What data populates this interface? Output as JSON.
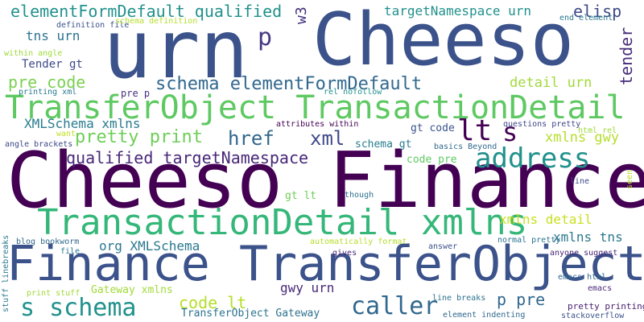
{
  "words": [
    {
      "text": "Cheeso Finance",
      "color": "#440154"
    },
    {
      "text": "urn",
      "color": "#3b528b"
    },
    {
      "text": "Cheeso",
      "color": "#3b528b"
    },
    {
      "text": "Finance TransferObject",
      "color": "#3b528b"
    },
    {
      "text": "TransferObject TransactionDetail",
      "color": "#5ec962"
    },
    {
      "text": "TransactionDetail xmlns",
      "color": "#35b779"
    },
    {
      "text": "address",
      "color": "#21918c"
    },
    {
      "text": "caller",
      "color": "#31688e"
    },
    {
      "text": "elementFormDefault qualified",
      "color": "#21918c"
    },
    {
      "text": "schema elementFormDefault",
      "color": "#31688e"
    },
    {
      "text": "s schema",
      "color": "#21918c"
    },
    {
      "text": "lt",
      "color": "#440154"
    },
    {
      "text": "s",
      "color": "#440154"
    },
    {
      "text": "p",
      "color": "#443983"
    },
    {
      "text": "qualified targetNamespace",
      "color": "#482878"
    },
    {
      "text": "pretty print",
      "color": "#6ece58"
    },
    {
      "text": "xml",
      "color": "#3e4989"
    },
    {
      "text": "href",
      "color": "#31688e"
    },
    {
      "text": "code lt",
      "color": "#b5de2b"
    },
    {
      "text": "p pre",
      "color": "#31688e"
    },
    {
      "text": "pre code",
      "color": "#7ad151"
    },
    {
      "text": "XMLSchema xmlns",
      "color": "#287c8e"
    },
    {
      "text": "org XMLSchema",
      "color": "#2a788e"
    },
    {
      "text": "targetNamespace urn",
      "color": "#21918c"
    },
    {
      "text": "elisp",
      "color": "#3e4989"
    },
    {
      "text": "tns urn",
      "color": "#2c728e"
    },
    {
      "text": "detail urn",
      "color": "#a0da39"
    },
    {
      "text": "xmlns gwy",
      "color": "#b5de2b"
    },
    {
      "text": "xmlns detail",
      "color": "#c8e020"
    },
    {
      "text": "xmlns tns",
      "color": "#2a788e"
    },
    {
      "text": "tender",
      "color": "#472d7b"
    },
    {
      "text": "w3 org",
      "color": "#46327e"
    },
    {
      "text": "gwy urn",
      "color": "#482878"
    },
    {
      "text": "Gateway xmlns",
      "color": "#a0da39"
    },
    {
      "text": "TransferObject Gateway",
      "color": "#2c728e"
    },
    {
      "text": "Tender gt",
      "color": "#3e4989"
    },
    {
      "text": "pre p",
      "color": "#46327e"
    },
    {
      "text": "printing xml",
      "color": "#2a788e"
    },
    {
      "text": "rel nofollow",
      "color": "#21918c"
    },
    {
      "text": "attributes within",
      "color": "#440154"
    },
    {
      "text": "gt code",
      "color": "#3b528b"
    },
    {
      "text": "schema gt",
      "color": "#287c8e"
    },
    {
      "text": "code pre",
      "color": "#5ec962"
    },
    {
      "text": "gt lt",
      "color": "#6ece58"
    },
    {
      "text": "basics Beyond",
      "color": "#31688e"
    },
    {
      "text": "questions pretty",
      "color": "#3e4989"
    },
    {
      "text": "html rel",
      "color": "#a0da39"
    },
    {
      "text": "though",
      "color": "#2c728e"
    },
    {
      "text": "line",
      "color": "#3e4989"
    },
    {
      "text": "seen",
      "color": "#b5de2b"
    },
    {
      "text": "angle brackets",
      "color": "#3e4989"
    },
    {
      "text": "want",
      "color": "#c2df23"
    },
    {
      "text": "within angle",
      "color": "#a0da39"
    },
    {
      "text": "definition file",
      "color": "#3b528b"
    },
    {
      "text": "schema definition",
      "color": "#b5de2b"
    },
    {
      "text": "end element",
      "color": "#2a788e"
    },
    {
      "text": "blog bookworm",
      "color": "#31688e"
    },
    {
      "text": "file",
      "color": "#2a788e"
    },
    {
      "text": "automatically format",
      "color": "#b5de2b"
    },
    {
      "text": "gives",
      "color": "#482878"
    },
    {
      "text": "answer",
      "color": "#3b528b"
    },
    {
      "text": "normal pretty",
      "color": "#2c728e"
    },
    {
      "text": "anyone suggest",
      "color": "#482878"
    },
    {
      "text": "emacs html",
      "color": "#31688e"
    },
    {
      "text": "emacs",
      "color": "#482878"
    },
    {
      "text": "pretty printing",
      "color": "#481f70"
    },
    {
      "text": "stackoverflow",
      "color": "#3b528b"
    },
    {
      "text": "line breaks",
      "color": "#2c728e"
    },
    {
      "text": "element indenting",
      "color": "#31688e"
    },
    {
      "text": "print stuff",
      "color": "#a0da39"
    },
    {
      "text": "stuff linebreaks",
      "color": "#2a788e"
    }
  ]
}
